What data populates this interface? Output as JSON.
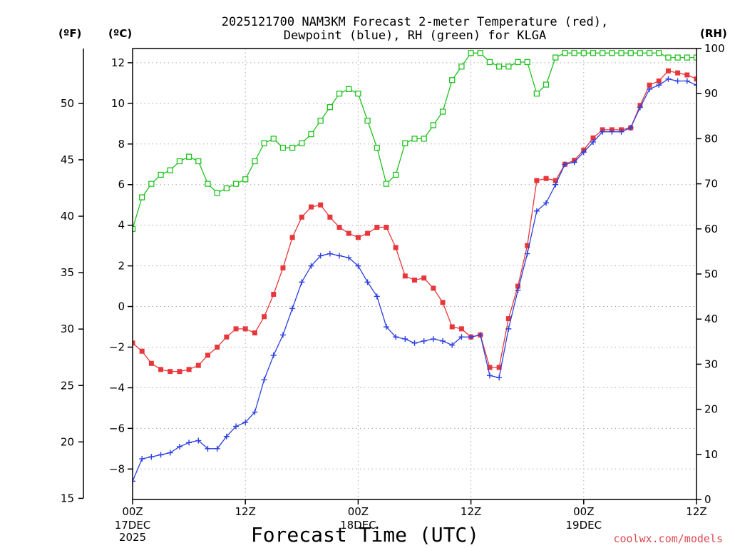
{
  "chart_data": {
    "type": "line",
    "title_lines": [
      "2025121700 NAM3KM Forecast 2-meter Temperature (red),",
      "Dewpoint (blue), RH (green) for KLGA"
    ],
    "xlabel": "Forecast Time (UTC)",
    "credit": "coolwx.com/models",
    "units": {
      "fahrenheit": "(ºF)",
      "celsius": "(ºC)",
      "rh": "(RH)"
    },
    "x_range_hours": [
      0,
      60
    ],
    "x_ticks": [
      {
        "hour": 0,
        "label": "00Z",
        "sub": [
          "17DEC",
          "2025"
        ]
      },
      {
        "hour": 12,
        "label": "12Z",
        "sub": []
      },
      {
        "hour": 24,
        "label": "00Z",
        "sub": [
          "18DEC"
        ]
      },
      {
        "hour": 36,
        "label": "12Z",
        "sub": []
      },
      {
        "hour": 48,
        "label": "00Z",
        "sub": [
          "19DEC"
        ]
      },
      {
        "hour": 60,
        "label": "12Z",
        "sub": []
      }
    ],
    "celsius_range": [
      -9.5,
      12.7
    ],
    "celsius_ticks": [
      "12",
      "10",
      "8",
      "6",
      "4",
      "2",
      "0",
      "−2",
      "−4",
      "−6",
      "−8"
    ],
    "fahrenheit_ticks": [
      "50",
      "45",
      "40",
      "35",
      "30",
      "25",
      "20",
      "15"
    ],
    "rh_range": [
      0,
      100
    ],
    "rh_ticks": [
      "100",
      "90",
      "80",
      "70",
      "60",
      "50",
      "40",
      "30",
      "20",
      "10",
      "0"
    ],
    "series": [
      {
        "name": "Temperature",
        "axis": "celsius",
        "color": "#e8373a",
        "marker": "square-filled",
        "values": [
          -1.8,
          -2.2,
          -2.8,
          -3.1,
          -3.2,
          -3.2,
          -3.1,
          -2.9,
          -2.4,
          -2.0,
          -1.5,
          -1.1,
          -1.1,
          -1.3,
          -0.5,
          0.6,
          1.9,
          3.4,
          4.4,
          4.9,
          5.0,
          4.4,
          3.9,
          3.6,
          3.4,
          3.6,
          3.9,
          3.9,
          2.9,
          1.5,
          1.3,
          1.4,
          0.9,
          0.2,
          -1.0,
          -1.1,
          -1.5,
          -1.4,
          -3.0,
          -3.0,
          -0.6,
          1.0,
          3.0,
          6.2,
          6.3,
          6.2,
          7.0,
          7.2,
          7.7,
          8.3,
          8.7,
          8.7,
          8.7,
          8.8,
          9.9,
          10.9,
          11.1,
          11.6,
          11.5,
          11.4,
          11.2
        ]
      },
      {
        "name": "Dewpoint",
        "axis": "celsius",
        "color": "#2b3fe0",
        "marker": "plus",
        "values": [
          -8.6,
          -7.5,
          -7.4,
          -7.3,
          -7.2,
          -6.9,
          -6.7,
          -6.6,
          -7.0,
          -7.0,
          -6.4,
          -5.9,
          -5.7,
          -5.2,
          -3.6,
          -2.4,
          -1.4,
          -0.1,
          1.2,
          2.0,
          2.5,
          2.6,
          2.5,
          2.4,
          2.0,
          1.2,
          0.5,
          -1.0,
          -1.5,
          -1.6,
          -1.8,
          -1.7,
          -1.6,
          -1.7,
          -1.9,
          -1.5,
          -1.5,
          -1.4,
          -3.4,
          -3.5,
          -1.1,
          0.8,
          2.6,
          4.7,
          5.1,
          6.0,
          7.0,
          7.1,
          7.6,
          8.1,
          8.6,
          8.6,
          8.6,
          8.8,
          9.8,
          10.7,
          10.9,
          11.2,
          11.1,
          11.1,
          10.9
        ]
      },
      {
        "name": "RH",
        "axis": "rh",
        "color": "#1fc21f",
        "marker": "square-open",
        "values": [
          60,
          67,
          70,
          72,
          73,
          75,
          76,
          75,
          70,
          68,
          69,
          70,
          71,
          75,
          79,
          80,
          78,
          78,
          79,
          81,
          84,
          87,
          90,
          91,
          90,
          84,
          78,
          70,
          72,
          79,
          80,
          80,
          83,
          86,
          93,
          96,
          99,
          99,
          97,
          96,
          96,
          97,
          97,
          90,
          92,
          98,
          99,
          99,
          99,
          99,
          99,
          99,
          99,
          99,
          99,
          99,
          99,
          98,
          98,
          98,
          98
        ]
      }
    ]
  }
}
